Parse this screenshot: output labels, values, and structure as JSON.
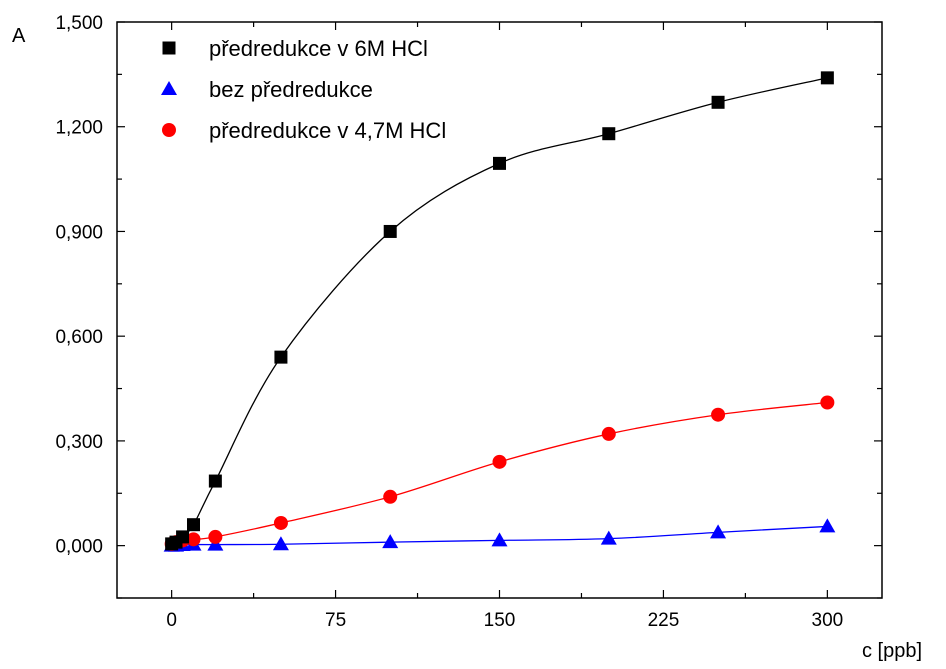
{
  "chart_data": {
    "type": "scatter",
    "xlabel": "c [ppb]",
    "ylabel": "A",
    "xlim": [
      -25,
      325
    ],
    "ylim": [
      -0.15,
      1.5
    ],
    "x_ticks": [
      0,
      75,
      150,
      225,
      300
    ],
    "x_tick_labels": [
      "0",
      "75",
      "150",
      "225",
      "300"
    ],
    "y_ticks": [
      0,
      0.3,
      0.6,
      0.9,
      1.2,
      1.5
    ],
    "y_tick_labels": [
      "0,000",
      "0,300",
      "0,600",
      "0,900",
      "1,200",
      "1,500"
    ],
    "grid": false,
    "legend_position": "top-left",
    "series": [
      {
        "name": "předredukce v 6M HCl",
        "marker": "square",
        "color": "#000000",
        "x": [
          0,
          2,
          5,
          10,
          20,
          50,
          100,
          150,
          200,
          250,
          300
        ],
        "y": [
          0.005,
          0.01,
          0.025,
          0.06,
          0.185,
          0.54,
          0.9,
          1.095,
          1.18,
          1.27,
          1.34
        ]
      },
      {
        "name": "bez předredukce",
        "marker": "triangle",
        "color": "#0000ff",
        "x": [
          0,
          2,
          5,
          10,
          20,
          50,
          100,
          150,
          200,
          250,
          300
        ],
        "y": [
          0.0,
          0.0,
          0.002,
          0.003,
          0.003,
          0.004,
          0.01,
          0.015,
          0.02,
          0.038,
          0.055
        ]
      },
      {
        "name": "předredukce v 4,7M HCl",
        "marker": "circle",
        "color": "#ff0000",
        "x": [
          0,
          2,
          5,
          10,
          20,
          50,
          100,
          150,
          200,
          250,
          300
        ],
        "y": [
          0.005,
          0.01,
          0.015,
          0.018,
          0.025,
          0.065,
          0.14,
          0.24,
          0.32,
          0.375,
          0.41
        ]
      }
    ]
  }
}
